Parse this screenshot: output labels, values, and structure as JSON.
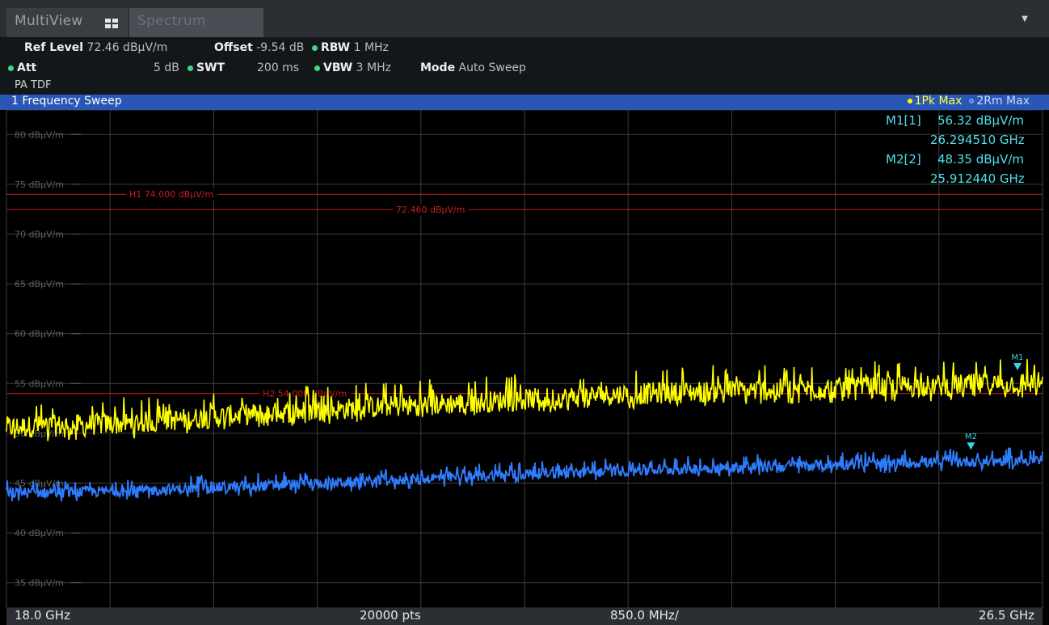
{
  "tabs": {
    "multiview_label": "MultiView",
    "spectrum_label": "Spectrum",
    "multiview_icon": "grid-icon",
    "dropdown_icon": "triangle-down-icon"
  },
  "settings": {
    "ref_level_label": "Ref Level",
    "ref_level_value": "72.46 dBµV/m",
    "offset_label": "Offset",
    "offset_value": "-9.54 dB",
    "rbw_label": "RBW",
    "rbw_value": "1 MHz",
    "att_label": "Att",
    "att_value": "5 dB",
    "swt_label": "SWT",
    "swt_value": "200 ms",
    "vbw_label": "VBW",
    "vbw_value": "3 MHz",
    "mode_label": "Mode",
    "mode_value": "Auto Sweep",
    "transducer": "PA TDF"
  },
  "diagram": {
    "title": "1 Frequency Sweep",
    "trace1_legend": "1Pk Max",
    "trace2_legend": "2Rm Max"
  },
  "markers": {
    "m1_label": "M1[1]",
    "m1_level": "56.32 dBµV/m",
    "m1_freq": "26.294510 GHz",
    "m2_label": "M2[2]",
    "m2_level": "48.35 dBµV/m",
    "m2_freq": "25.912440 GHz",
    "m1_tag": "M1",
    "m2_tag": "M2"
  },
  "lines": {
    "h1_label": "H1 74.000 dBµV/m",
    "ref_label": "72.460 dBµV/m",
    "h2_label": "H2 54.000 dBµV/m"
  },
  "footer": {
    "start": "18.0 GHz",
    "points": "20000 pts",
    "span_per_div": "850.0 MHz/",
    "stop": "26.5 GHz"
  },
  "colors": {
    "trace1": "#ffff00",
    "trace2": "#2f7dff",
    "limit_line": "#c81e1e",
    "marker": "#35d8e0",
    "title_bar": "#2a57b5"
  },
  "chart_data": {
    "type": "line",
    "xlim_ghz": [
      18.0,
      26.5
    ],
    "ylim": [
      32.46,
      82.46
    ],
    "y_unit": "dBµV/m",
    "y_ticks": [
      {
        "value": 80,
        "label": "80 dBµV/m"
      },
      {
        "value": 75,
        "label": "75 dBµV/m"
      },
      {
        "value": 70,
        "label": "70 dBµV/m"
      },
      {
        "value": 65,
        "label": "65 dBµV/m"
      },
      {
        "value": 60,
        "label": "60 dBµV/m"
      },
      {
        "value": 55,
        "label": "55 dBµV/m"
      },
      {
        "value": 50,
        "label": "50 dBµV/m"
      },
      {
        "value": 45,
        "label": "45 dBµV/m"
      },
      {
        "value": 40,
        "label": "40 dBµV/m"
      },
      {
        "value": 35,
        "label": "35 dBµV/m"
      }
    ],
    "horizontal_lines": [
      {
        "name": "H1",
        "value": 74.0
      },
      {
        "name": "Ref",
        "value": 72.46
      },
      {
        "name": "H2",
        "value": 54.0
      }
    ],
    "series": [
      {
        "name": "1Pk Max",
        "x": [
          18.0,
          19.0,
          20.0,
          21.0,
          22.0,
          23.0,
          24.0,
          25.0,
          26.0,
          26.5
        ],
        "values": [
          50.6,
          51.0,
          51.9,
          52.6,
          53.2,
          53.9,
          54.3,
          54.6,
          54.9,
          55.1
        ]
      },
      {
        "name": "2Rm Max",
        "x": [
          18.0,
          19.0,
          20.0,
          21.0,
          22.0,
          23.0,
          24.0,
          25.0,
          26.0,
          26.5
        ],
        "values": [
          44.0,
          44.2,
          44.7,
          45.2,
          45.8,
          46.2,
          46.6,
          46.9,
          47.2,
          47.3
        ]
      }
    ],
    "markers": [
      {
        "name": "M1",
        "trace": 1,
        "x": 26.29451,
        "value": 56.32
      },
      {
        "name": "M2",
        "trace": 2,
        "x": 25.91244,
        "value": 48.35
      }
    ]
  }
}
